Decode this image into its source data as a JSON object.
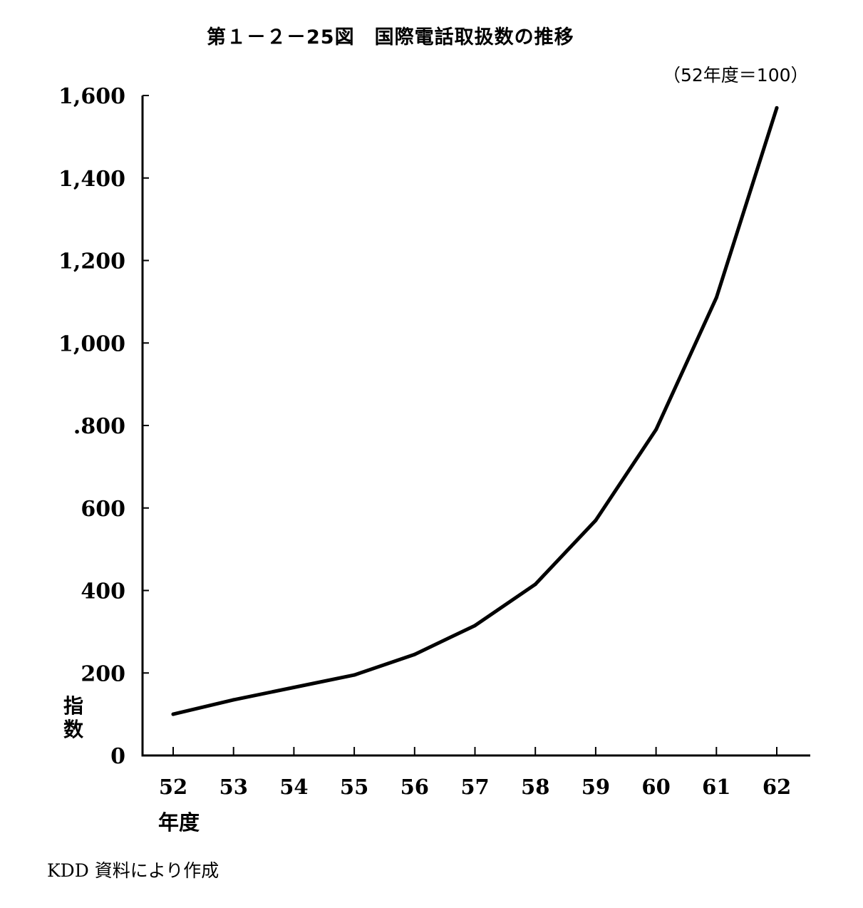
{
  "figure": {
    "title": "第１－２－25図　国際電話取扱数の推移",
    "unit_note": "（52年度＝100）",
    "source": "KDD 資料により作成"
  },
  "chart_data": {
    "type": "line",
    "title": "第１－２－25図　国際電話取扱数の推移",
    "subtitle": "（52年度＝100）",
    "xlabel": "年度",
    "ylabel": "指数",
    "x": [
      "52",
      "53",
      "54",
      "55",
      "56",
      "57",
      "58",
      "59",
      "60",
      "61",
      "62"
    ],
    "y_tick_values": [
      0,
      200,
      400,
      600,
      800,
      1000,
      1200,
      1400,
      1600
    ],
    "y_tick_labels": [
      "0",
      "200",
      "400",
      "600",
      ".800",
      "1,000",
      "1,200",
      "1,400",
      "1,600"
    ],
    "ylim": [
      0,
      1600
    ],
    "grid": false,
    "legend": "none",
    "series": [
      {
        "values": [
          100,
          135,
          165,
          195,
          245,
          315,
          415,
          570,
          790,
          1110,
          1570
        ],
        "color": "#000000"
      }
    ],
    "source": "KDD 資料により作成"
  }
}
